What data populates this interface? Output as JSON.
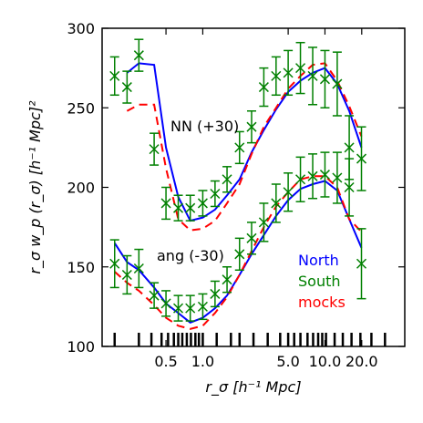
{
  "chart_data": {
    "type": "line",
    "xscale": "log",
    "xlim": [
      0.15,
      45
    ],
    "ylim": [
      100,
      300
    ],
    "xlabel": "r_σ [h⁻¹ Mpc]",
    "ylabel": "r_σ w_p (r_σ) [h⁻¹ Mpc]²",
    "xticks": [
      {
        "value": 0.5,
        "label": "0.5"
      },
      {
        "value": 1.0,
        "label": "1.0"
      },
      {
        "value": 5.0,
        "label": "5.0"
      },
      {
        "value": 10.0,
        "label": "10.0"
      },
      {
        "value": 20.0,
        "label": "20.0"
      }
    ],
    "yticks": [
      100,
      150,
      200,
      250,
      300
    ],
    "grid": false,
    "legend": {
      "placement": "bottom-right",
      "entries": [
        {
          "label": "North",
          "color": "#0000ff"
        },
        {
          "label": "South",
          "color": "#008000"
        },
        {
          "label": "mocks",
          "color": "#ff0000"
        }
      ]
    },
    "annotations": [
      "NN (+30)",
      "ang (-30)"
    ],
    "x": [
      0.19,
      0.24,
      0.3,
      0.4,
      0.5,
      0.63,
      0.79,
      1.0,
      1.26,
      1.58,
      2.0,
      2.51,
      3.16,
      3.98,
      5.0,
      6.3,
      7.94,
      10.0,
      12.6,
      15.8,
      19.9,
      25.1,
      31.6
    ],
    "rug_x": [
      0.19,
      0.3,
      0.38,
      0.46,
      0.52,
      0.58,
      0.63,
      0.68,
      0.74,
      0.8,
      0.87,
      0.93,
      1.0,
      1.3,
      1.7,
      2.0,
      2.6,
      3.4,
      4.3,
      5.0,
      5.6,
      6.3,
      7.2,
      8.0,
      8.8,
      9.5,
      10.2,
      12.0,
      14.0,
      16.5,
      19.5,
      24.0,
      31.0
    ],
    "series": [
      {
        "name": "North",
        "color": "#0000ff",
        "style": "solid",
        "values": [
          null,
          272,
          278,
          277,
          225,
          194,
          179,
          181,
          186,
          195,
          205,
          222,
          236,
          249,
          260,
          267,
          272,
          275,
          265,
          248,
          225,
          null,
          null
        ]
      },
      {
        "name": "mocks",
        "color": "#ff0000",
        "style": "dashed",
        "values": [
          null,
          248,
          252,
          252,
          212,
          180,
          173,
          174,
          179,
          190,
          202,
          221,
          238,
          250,
          262,
          270,
          277,
          278,
          267,
          251,
          232,
          null,
          null
        ]
      },
      {
        "name": "South",
        "color": "#008000",
        "style": "markers",
        "marker": "x",
        "values": [
          270,
          263,
          283,
          224,
          190,
          187,
          187,
          190,
          196,
          205,
          225,
          238,
          263,
          270,
          272,
          275,
          270,
          268,
          265,
          225,
          218,
          null,
          null
        ],
        "errors": [
          12,
          10,
          10,
          10,
          10,
          8,
          8,
          8,
          8,
          8,
          10,
          10,
          12,
          12,
          14,
          16,
          18,
          18,
          20,
          20,
          20,
          null,
          null
        ]
      },
      {
        "name": "North",
        "color": "#0000ff",
        "style": "solid",
        "values": [
          165,
          153,
          148,
          137,
          127,
          121,
          115,
          118,
          124,
          132,
          145,
          158,
          170,
          182,
          192,
          199,
          202,
          204,
          198,
          180,
          162,
          null,
          null
        ]
      },
      {
        "name": "mocks",
        "color": "#ff0000",
        "style": "dashed",
        "values": [
          147,
          140,
          135,
          126,
          118,
          113,
          111,
          113,
          121,
          131,
          145,
          160,
          175,
          188,
          197,
          205,
          207,
          207,
          200,
          180,
          172,
          null,
          null
        ]
      },
      {
        "name": "South",
        "color": "#008000",
        "style": "markers",
        "marker": "x",
        "values": [
          152,
          145,
          149,
          132,
          127,
          124,
          124,
          125,
          133,
          142,
          158,
          168,
          178,
          190,
          197,
          205,
          207,
          208,
          206,
          200,
          152,
          null,
          null
        ],
        "errors": [
          15,
          12,
          12,
          8,
          8,
          8,
          8,
          8,
          8,
          8,
          10,
          10,
          12,
          12,
          12,
          14,
          14,
          14,
          16,
          18,
          22,
          null,
          null
        ]
      }
    ]
  }
}
